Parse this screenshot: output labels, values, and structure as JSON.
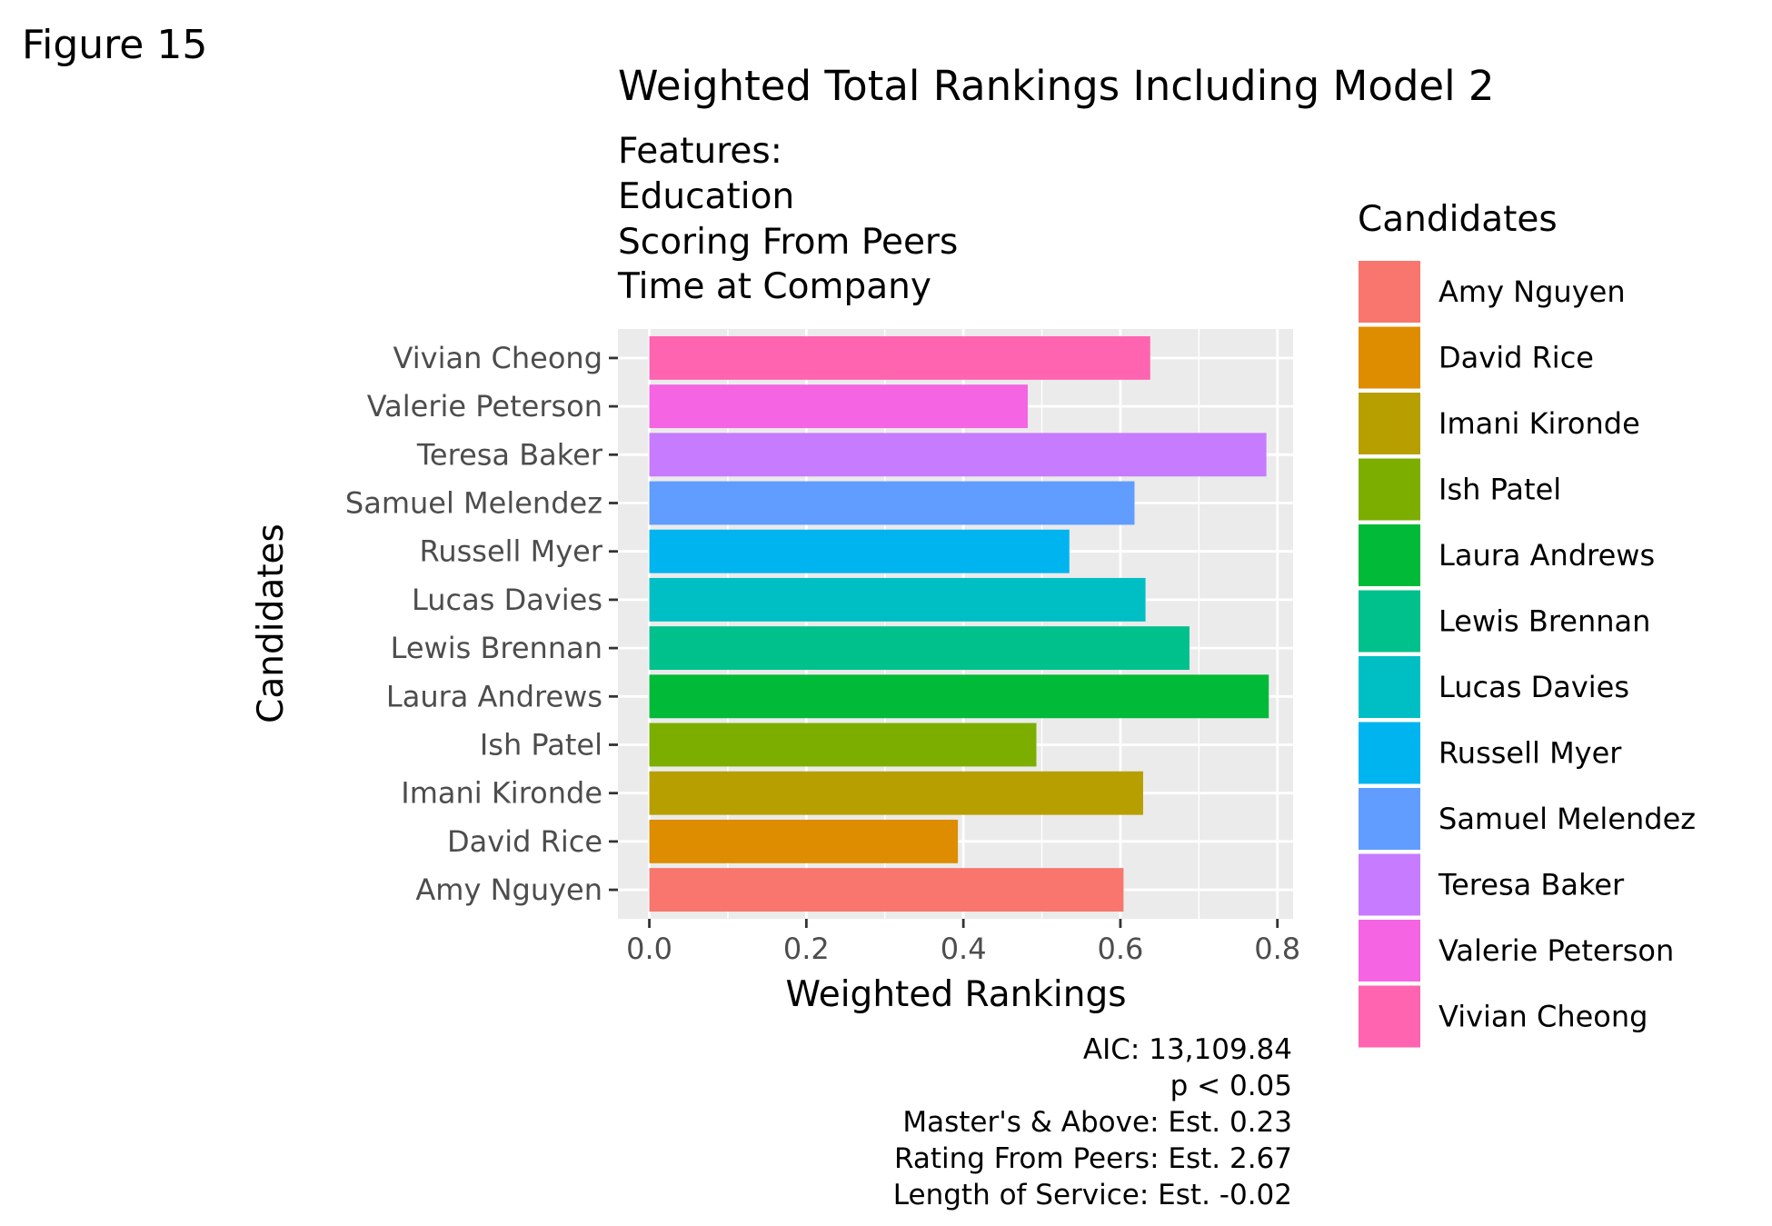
{
  "figure_label": "Figure 15",
  "chart_data": {
    "type": "bar",
    "orientation": "horizontal",
    "title": "Weighted Total Rankings Including Model 2",
    "subtitle": [
      "Features:",
      "Education",
      "Scoring From Peers",
      "Time at Company"
    ],
    "xlabel": "Weighted Rankings",
    "ylabel": "Candidates",
    "xlim": [
      -0.04,
      0.82
    ],
    "xticks": [
      0.0,
      0.2,
      0.4,
      0.6,
      0.8
    ],
    "xtick_labels": [
      "0.0",
      "0.2",
      "0.4",
      "0.6",
      "0.8"
    ],
    "grid": true,
    "categories": [
      "Amy Nguyen",
      "David Rice",
      "Imani Kironde",
      "Ish Patel",
      "Laura Andrews",
      "Lewis Brennan",
      "Lucas Davies",
      "Russell Myer",
      "Samuel Melendez",
      "Teresa Baker",
      "Valerie Peterson",
      "Vivian Cheong"
    ],
    "values": [
      0.604,
      0.393,
      0.629,
      0.493,
      0.789,
      0.688,
      0.632,
      0.535,
      0.618,
      0.786,
      0.482,
      0.638
    ],
    "colors": [
      "#F8766D",
      "#DE8C00",
      "#B79F00",
      "#7CAE00",
      "#00BA38",
      "#00C08B",
      "#00BFC4",
      "#00B4F0",
      "#619CFF",
      "#C77CFF",
      "#F564E3",
      "#FF64B0"
    ],
    "legend": {
      "title": "Candidates",
      "position": "right"
    },
    "caption": [
      "AIC: 13,109.84",
      "p < 0.05",
      "Master's & Above: Est. 0.23",
      "Rating From Peers: Est. 2.67",
      "Length of Service: Est. -0.02"
    ]
  },
  "colors": {
    "panel_bg": "#EBEBEB",
    "grid_major": "#FFFFFF",
    "axis_text": "#4D4D4D",
    "text": "#000000"
  }
}
